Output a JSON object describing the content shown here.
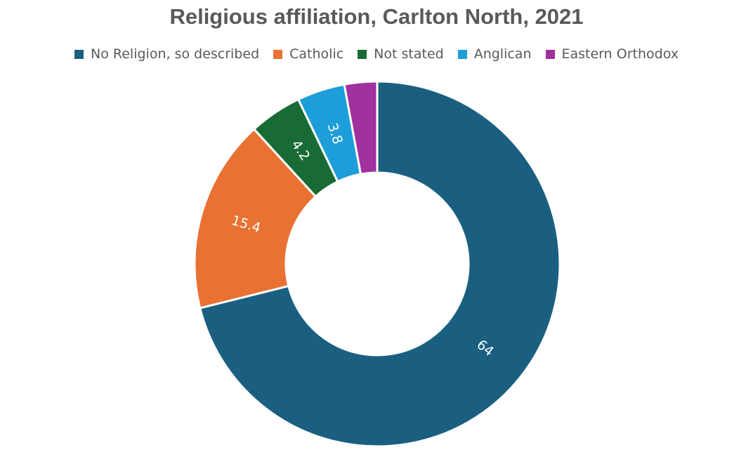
{
  "chart_data": {
    "type": "pie",
    "variant": "donut",
    "title": "Religious affiliation, Carlton North, 2021",
    "categories": [
      "No Religion, so described",
      "Catholic",
      "Not stated",
      "Anglican",
      "Eastern Orthodox"
    ],
    "values": [
      64,
      15.4,
      4.2,
      3.8,
      2.6
    ],
    "data_labels": [
      "64",
      "15.4",
      "4.2",
      "3.8",
      ""
    ],
    "colors": [
      "#1a5f80",
      "#e97132",
      "#196b36",
      "#1d9ed8",
      "#a0319d"
    ],
    "legend_position": "top"
  }
}
